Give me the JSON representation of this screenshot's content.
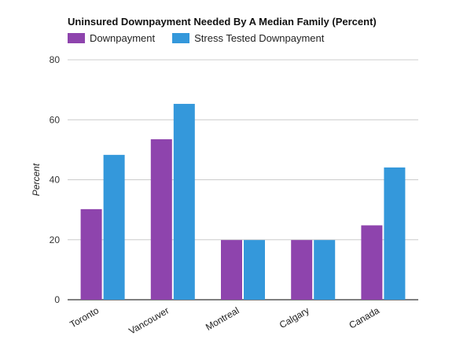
{
  "chart_data": {
    "type": "bar",
    "title": "Uninsured Downpayment Needed By A Median Family (Percent)",
    "ylabel": "Percent",
    "xlabel": "",
    "ylim": [
      0,
      80
    ],
    "yticks": [
      0,
      20,
      40,
      60,
      80
    ],
    "grid": true,
    "legend_position": "top-left",
    "categories": [
      "Toronto",
      "Vancouver",
      "Montreal",
      "Calgary",
      "Canada"
    ],
    "series": [
      {
        "name": "Downpayment",
        "color": "#8e44ad",
        "values": [
          30.2,
          53.5,
          19.9,
          19.9,
          24.8
        ]
      },
      {
        "name": "Stress Tested Downpayment",
        "color": "#3498db",
        "values": [
          48.3,
          65.3,
          19.9,
          19.9,
          44.1
        ]
      }
    ]
  }
}
